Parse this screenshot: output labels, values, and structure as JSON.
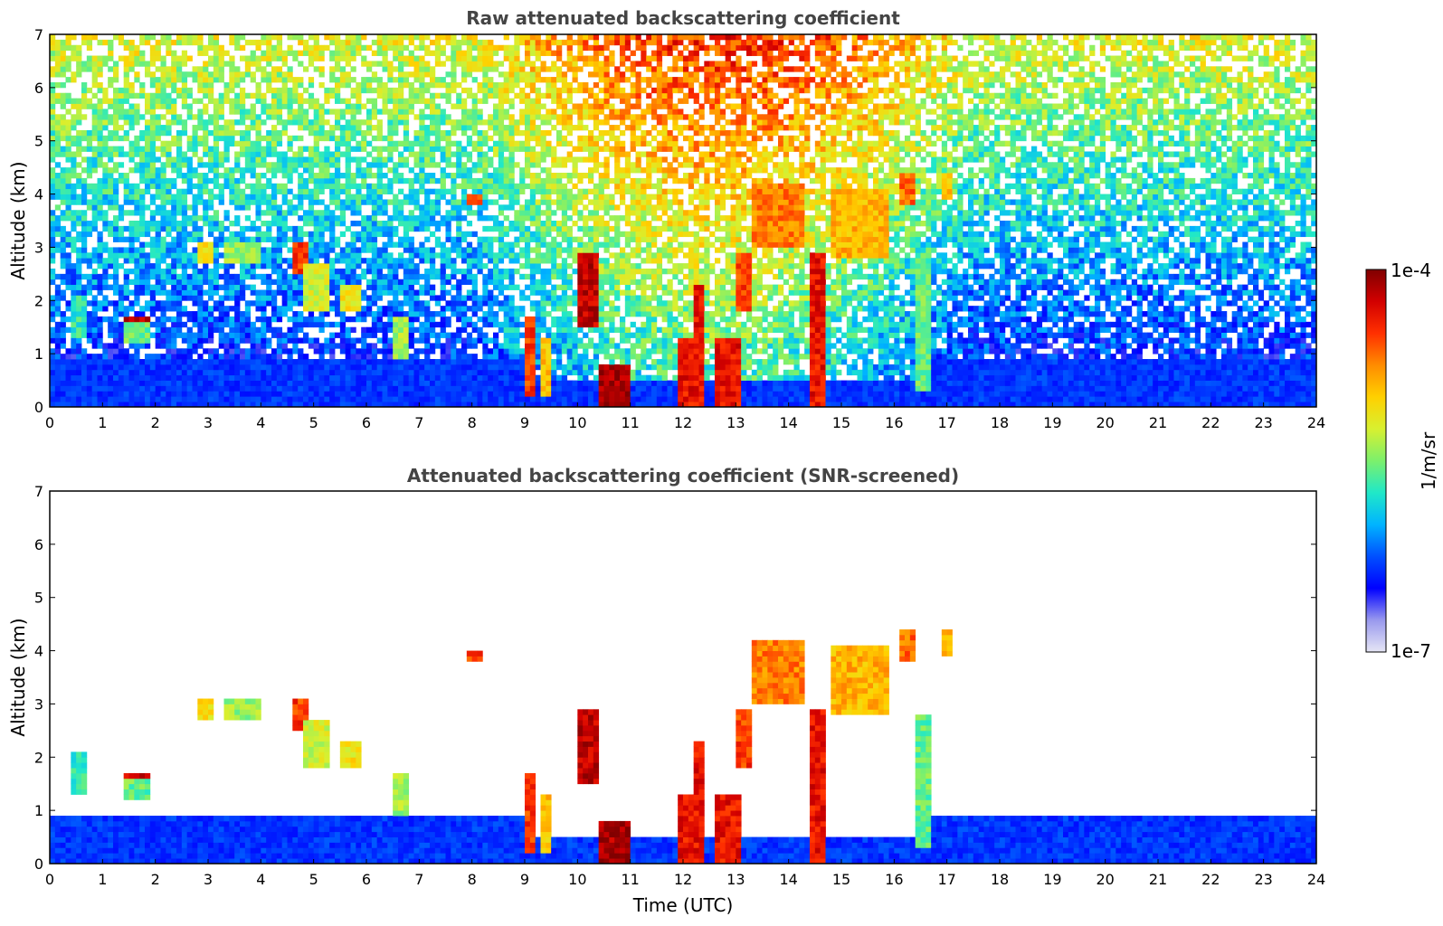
{
  "chart_data": [
    {
      "type": "heatmap",
      "title": "Raw attenuated backscattering coefficient",
      "xlabel": "",
      "ylabel": "Altitude (km)",
      "xlim": [
        0,
        24
      ],
      "ylim": [
        0,
        7
      ],
      "xticks": [
        "0",
        "1",
        "2",
        "3",
        "4",
        "5",
        "6",
        "7",
        "8",
        "9",
        "10",
        "11",
        "12",
        "13",
        "14",
        "15",
        "16",
        "17",
        "18",
        "19",
        "20",
        "21",
        "22",
        "23",
        "24"
      ],
      "yticks": [
        "0",
        "1",
        "2",
        "3",
        "4",
        "5",
        "6",
        "7"
      ],
      "screened": false,
      "features": [
        {
          "t0": 0.4,
          "t1": 0.7,
          "h0": 1.3,
          "h1": 2.1,
          "v": 0.45
        },
        {
          "t0": 1.4,
          "t1": 1.9,
          "h0": 1.2,
          "h1": 1.7,
          "v": 0.5
        },
        {
          "t0": 1.45,
          "t1": 1.95,
          "h0": 1.55,
          "h1": 1.7,
          "v": 0.95
        },
        {
          "t0": 2.8,
          "t1": 3.1,
          "h0": 2.7,
          "h1": 3.1,
          "v": 0.65
        },
        {
          "t0": 3.3,
          "t1": 4.0,
          "h0": 2.7,
          "h1": 3.1,
          "v": 0.55
        },
        {
          "t0": 4.6,
          "t1": 4.9,
          "h0": 2.5,
          "h1": 3.1,
          "v": 0.85
        },
        {
          "t0": 4.8,
          "t1": 5.3,
          "h0": 1.8,
          "h1": 2.7,
          "v": 0.6
        },
        {
          "t0": 5.5,
          "t1": 5.9,
          "h0": 1.8,
          "h1": 2.3,
          "v": 0.65
        },
        {
          "t0": 6.5,
          "t1": 6.8,
          "h0": 0.9,
          "h1": 1.7,
          "v": 0.55
        },
        {
          "t0": 7.9,
          "t1": 8.2,
          "h0": 3.85,
          "h1": 4.05,
          "v": 0.85
        },
        {
          "t0": 8.6,
          "t1": 8.9,
          "h0": 1.1,
          "h1": 1.5,
          "v": 0.4
        },
        {
          "t0": 9.0,
          "t1": 9.2,
          "h0": 0.2,
          "h1": 1.7,
          "v": 0.85
        },
        {
          "t0": 9.3,
          "t1": 9.5,
          "h0": 0.2,
          "h1": 1.3,
          "v": 0.7
        },
        {
          "t0": 10.05,
          "t1": 10.4,
          "h0": 1.5,
          "h1": 2.9,
          "v": 0.95
        },
        {
          "t0": 10.4,
          "t1": 11.0,
          "h0": 0.0,
          "h1": 0.8,
          "v": 0.98
        },
        {
          "t0": 11.9,
          "t1": 12.4,
          "h0": 0.0,
          "h1": 1.3,
          "v": 0.9
        },
        {
          "t0": 12.2,
          "t1": 12.4,
          "h0": 0.5,
          "h1": 2.3,
          "v": 0.9
        },
        {
          "t0": 12.6,
          "t1": 13.1,
          "h0": 0.0,
          "h1": 1.3,
          "v": 0.9
        },
        {
          "t0": 13.0,
          "t1": 13.3,
          "h0": 1.8,
          "h1": 2.9,
          "v": 0.85
        },
        {
          "t0": 13.3,
          "t1": 14.3,
          "h0": 3.0,
          "h1": 4.2,
          "v": 0.78
        },
        {
          "t0": 14.4,
          "t1": 14.7,
          "h0": 0.0,
          "h1": 2.9,
          "v": 0.9
        },
        {
          "t0": 14.8,
          "t1": 15.9,
          "h0": 2.8,
          "h1": 4.1,
          "v": 0.72
        },
        {
          "t0": 16.1,
          "t1": 16.4,
          "h0": 3.8,
          "h1": 4.4,
          "v": 0.8
        },
        {
          "t0": 16.45,
          "t1": 16.65,
          "h0": 0.3,
          "h1": 2.8,
          "v": 0.5
        },
        {
          "t0": 16.9,
          "t1": 17.1,
          "h0": 3.9,
          "h1": 4.4,
          "v": 0.7
        }
      ]
    },
    {
      "type": "heatmap",
      "title": "Attenuated backscattering coefficient (SNR-screened)",
      "xlabel": "Time (UTC)",
      "ylabel": "Altitude (km)",
      "xlim": [
        0,
        24
      ],
      "ylim": [
        0,
        7
      ],
      "xticks": [
        "0",
        "1",
        "2",
        "3",
        "4",
        "5",
        "6",
        "7",
        "8",
        "9",
        "10",
        "11",
        "12",
        "13",
        "14",
        "15",
        "16",
        "17",
        "18",
        "19",
        "20",
        "21",
        "22",
        "23",
        "24"
      ],
      "yticks": [
        "0",
        "1",
        "2",
        "3",
        "4",
        "5",
        "6",
        "7"
      ],
      "screened": true,
      "features": [
        {
          "t0": 0.4,
          "t1": 0.7,
          "h0": 1.3,
          "h1": 2.1,
          "v": 0.45
        },
        {
          "t0": 1.4,
          "t1": 1.9,
          "h0": 1.2,
          "h1": 1.7,
          "v": 0.5
        },
        {
          "t0": 1.45,
          "t1": 1.95,
          "h0": 1.55,
          "h1": 1.7,
          "v": 0.95
        },
        {
          "t0": 2.8,
          "t1": 3.1,
          "h0": 2.7,
          "h1": 3.1,
          "v": 0.65
        },
        {
          "t0": 3.3,
          "t1": 4.0,
          "h0": 2.7,
          "h1": 3.1,
          "v": 0.55
        },
        {
          "t0": 4.6,
          "t1": 4.9,
          "h0": 2.5,
          "h1": 3.1,
          "v": 0.85
        },
        {
          "t0": 4.8,
          "t1": 5.3,
          "h0": 1.8,
          "h1": 2.7,
          "v": 0.6
        },
        {
          "t0": 5.5,
          "t1": 5.9,
          "h0": 1.8,
          "h1": 2.3,
          "v": 0.65
        },
        {
          "t0": 6.5,
          "t1": 6.8,
          "h0": 0.9,
          "h1": 1.7,
          "v": 0.55
        },
        {
          "t0": 7.9,
          "t1": 8.2,
          "h0": 3.85,
          "h1": 4.05,
          "v": 0.85
        },
        {
          "t0": 9.0,
          "t1": 9.2,
          "h0": 0.2,
          "h1": 1.7,
          "v": 0.85
        },
        {
          "t0": 9.3,
          "t1": 9.5,
          "h0": 0.2,
          "h1": 1.3,
          "v": 0.7
        },
        {
          "t0": 10.05,
          "t1": 10.4,
          "h0": 1.5,
          "h1": 2.9,
          "v": 0.95
        },
        {
          "t0": 10.4,
          "t1": 11.0,
          "h0": 0.0,
          "h1": 0.8,
          "v": 0.98
        },
        {
          "t0": 11.9,
          "t1": 12.4,
          "h0": 0.0,
          "h1": 1.3,
          "v": 0.9
        },
        {
          "t0": 12.2,
          "t1": 12.4,
          "h0": 0.5,
          "h1": 2.3,
          "v": 0.9
        },
        {
          "t0": 12.6,
          "t1": 13.1,
          "h0": 0.0,
          "h1": 1.3,
          "v": 0.9
        },
        {
          "t0": 13.0,
          "t1": 13.3,
          "h0": 1.8,
          "h1": 2.9,
          "v": 0.85
        },
        {
          "t0": 13.3,
          "t1": 14.3,
          "h0": 3.0,
          "h1": 4.2,
          "v": 0.78
        },
        {
          "t0": 14.4,
          "t1": 14.7,
          "h0": 0.0,
          "h1": 2.9,
          "v": 0.9
        },
        {
          "t0": 14.8,
          "t1": 15.9,
          "h0": 2.8,
          "h1": 4.1,
          "v": 0.72
        },
        {
          "t0": 16.1,
          "t1": 16.4,
          "h0": 3.8,
          "h1": 4.4,
          "v": 0.8
        },
        {
          "t0": 16.45,
          "t1": 16.65,
          "h0": 0.3,
          "h1": 2.8,
          "v": 0.5
        },
        {
          "t0": 16.9,
          "t1": 17.1,
          "h0": 3.9,
          "h1": 4.4,
          "v": 0.7
        }
      ]
    }
  ],
  "colorbar": {
    "label": "1/m/sr",
    "max_label": "1e-4",
    "min_label": "1e-7",
    "colors": [
      "#e6e6f5",
      "#9999ee",
      "#0000ff",
      "#0050ff",
      "#00b4ff",
      "#20e8c8",
      "#7cf06c",
      "#d8f030",
      "#ffd000",
      "#ff8c00",
      "#ff3000",
      "#d20000",
      "#800000"
    ]
  }
}
